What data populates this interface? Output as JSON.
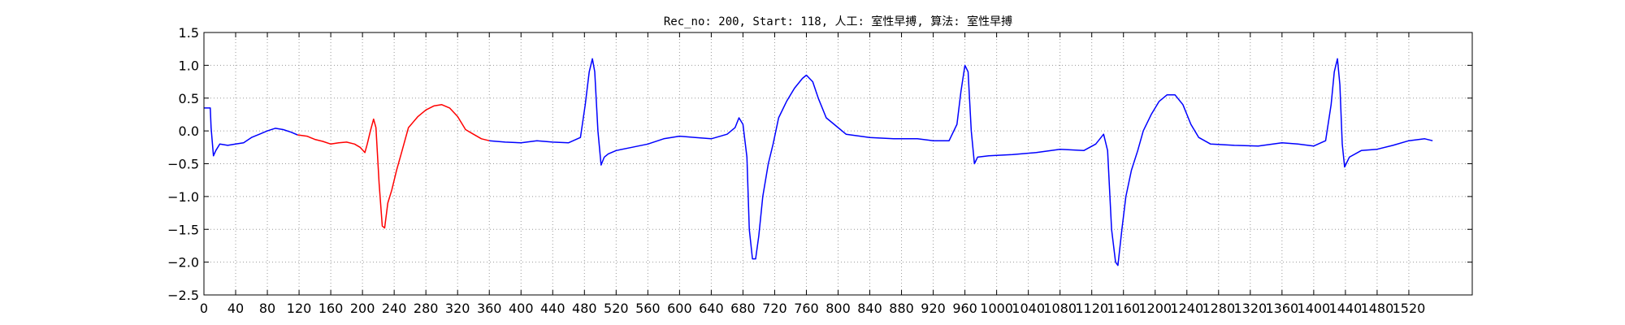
{
  "chart_data": {
    "type": "line",
    "title": "Rec_no: 200, Start: 118, 人工: 室性早搏, 算法: 室性早搏",
    "xlabel": "",
    "ylabel": "",
    "xlim": [
      0,
      1600
    ],
    "ylim": [
      -2.5,
      1.5
    ],
    "x_ticks": [
      0,
      40,
      80,
      120,
      160,
      200,
      240,
      280,
      320,
      360,
      400,
      440,
      480,
      520,
      560,
      600,
      640,
      680,
      720,
      760,
      800,
      840,
      880,
      920,
      960,
      1000,
      1040,
      1080,
      1120,
      1160,
      1200,
      1240,
      1280,
      1320,
      1360,
      1400,
      1440,
      1480,
      1520
    ],
    "y_ticks": [
      "1.5",
      "1.0",
      "0.5",
      "0.0",
      "−0.5",
      "−1.0",
      "−1.5",
      "−2.0",
      "−2.5"
    ],
    "y_tick_values": [
      1.5,
      1.0,
      0.5,
      0.0,
      -0.5,
      -1.0,
      -1.5,
      -2.0,
      -2.5
    ],
    "grid": true,
    "colors": {
      "signal": "#0000ff",
      "highlight": "#ff0000",
      "grid": "#999999"
    },
    "series": [
      {
        "color": "#0000ff",
        "points": [
          [
            0,
            0.35
          ],
          [
            8,
            0.35
          ],
          [
            9,
            0.05
          ],
          [
            12,
            -0.38
          ],
          [
            15,
            -0.3
          ],
          [
            20,
            -0.2
          ],
          [
            30,
            -0.22
          ],
          [
            40,
            -0.2
          ],
          [
            50,
            -0.18
          ],
          [
            60,
            -0.1
          ],
          [
            70,
            -0.05
          ],
          [
            80,
            0.0
          ],
          [
            90,
            0.04
          ],
          [
            100,
            0.02
          ],
          [
            110,
            -0.02
          ],
          [
            118,
            -0.06
          ]
        ]
      },
      {
        "color": "#ff0000",
        "points": [
          [
            118,
            -0.06
          ],
          [
            130,
            -0.08
          ],
          [
            140,
            -0.13
          ],
          [
            150,
            -0.16
          ],
          [
            160,
            -0.2
          ],
          [
            170,
            -0.18
          ],
          [
            180,
            -0.17
          ],
          [
            190,
            -0.2
          ],
          [
            197,
            -0.25
          ],
          [
            203,
            -0.33
          ],
          [
            206,
            -0.2
          ],
          [
            210,
            0.0
          ],
          [
            214,
            0.18
          ],
          [
            217,
            0.05
          ],
          [
            221,
            -0.8
          ],
          [
            225,
            -1.45
          ],
          [
            228,
            -1.48
          ],
          [
            232,
            -1.1
          ],
          [
            237,
            -0.9
          ],
          [
            243,
            -0.6
          ],
          [
            250,
            -0.3
          ],
          [
            258,
            0.05
          ],
          [
            270,
            0.22
          ],
          [
            280,
            0.32
          ],
          [
            290,
            0.38
          ],
          [
            300,
            0.4
          ],
          [
            310,
            0.35
          ],
          [
            320,
            0.22
          ],
          [
            330,
            0.02
          ],
          [
            340,
            -0.05
          ],
          [
            350,
            -0.12
          ],
          [
            360,
            -0.15
          ]
        ]
      },
      {
        "color": "#0000ff",
        "points": [
          [
            360,
            -0.15
          ],
          [
            380,
            -0.17
          ],
          [
            400,
            -0.18
          ],
          [
            420,
            -0.15
          ],
          [
            440,
            -0.17
          ],
          [
            460,
            -0.18
          ],
          [
            475,
            -0.1
          ],
          [
            481,
            0.4
          ],
          [
            486,
            0.9
          ],
          [
            490,
            1.1
          ],
          [
            493,
            0.9
          ],
          [
            497,
            0.0
          ],
          [
            501,
            -0.52
          ],
          [
            505,
            -0.4
          ],
          [
            510,
            -0.35
          ],
          [
            520,
            -0.3
          ],
          [
            540,
            -0.25
          ],
          [
            560,
            -0.2
          ],
          [
            580,
            -0.12
          ],
          [
            600,
            -0.08
          ],
          [
            620,
            -0.1
          ],
          [
            640,
            -0.12
          ],
          [
            660,
            -0.05
          ],
          [
            670,
            0.05
          ],
          [
            675,
            0.2
          ],
          [
            680,
            0.1
          ],
          [
            685,
            -0.4
          ],
          [
            688,
            -1.5
          ],
          [
            692,
            -1.95
          ],
          [
            696,
            -1.95
          ],
          [
            700,
            -1.6
          ],
          [
            705,
            -1.0
          ],
          [
            712,
            -0.5
          ],
          [
            718,
            -0.2
          ],
          [
            725,
            0.2
          ],
          [
            735,
            0.45
          ],
          [
            745,
            0.65
          ],
          [
            755,
            0.8
          ],
          [
            760,
            0.85
          ],
          [
            768,
            0.75
          ],
          [
            775,
            0.5
          ],
          [
            785,
            0.2
          ],
          [
            795,
            0.1
          ],
          [
            810,
            -0.05
          ],
          [
            840,
            -0.1
          ],
          [
            870,
            -0.12
          ],
          [
            900,
            -0.12
          ],
          [
            920,
            -0.15
          ],
          [
            940,
            -0.15
          ],
          [
            950,
            0.1
          ],
          [
            955,
            0.6
          ],
          [
            960,
            1.0
          ],
          [
            964,
            0.9
          ],
          [
            968,
            0.0
          ],
          [
            972,
            -0.5
          ],
          [
            976,
            -0.4
          ],
          [
            990,
            -0.38
          ],
          [
            1020,
            -0.36
          ],
          [
            1050,
            -0.33
          ],
          [
            1080,
            -0.28
          ],
          [
            1110,
            -0.3
          ],
          [
            1125,
            -0.2
          ],
          [
            1135,
            -0.05
          ],
          [
            1140,
            -0.3
          ],
          [
            1145,
            -1.5
          ],
          [
            1150,
            -2.0
          ],
          [
            1153,
            -2.05
          ],
          [
            1158,
            -1.5
          ],
          [
            1163,
            -1.0
          ],
          [
            1170,
            -0.6
          ],
          [
            1178,
            -0.3
          ],
          [
            1185,
            0.0
          ],
          [
            1195,
            0.25
          ],
          [
            1205,
            0.45
          ],
          [
            1215,
            0.55
          ],
          [
            1225,
            0.55
          ],
          [
            1235,
            0.4
          ],
          [
            1245,
            0.1
          ],
          [
            1255,
            -0.1
          ],
          [
            1270,
            -0.2
          ],
          [
            1300,
            -0.22
          ],
          [
            1330,
            -0.23
          ],
          [
            1360,
            -0.18
          ],
          [
            1380,
            -0.2
          ],
          [
            1400,
            -0.23
          ],
          [
            1415,
            -0.15
          ],
          [
            1422,
            0.4
          ],
          [
            1426,
            0.9
          ],
          [
            1430,
            1.1
          ],
          [
            1433,
            0.7
          ],
          [
            1436,
            -0.2
          ],
          [
            1439,
            -0.55
          ],
          [
            1445,
            -0.4
          ],
          [
            1460,
            -0.3
          ],
          [
            1480,
            -0.28
          ],
          [
            1500,
            -0.22
          ],
          [
            1520,
            -0.15
          ],
          [
            1540,
            -0.12
          ],
          [
            1550,
            -0.15
          ]
        ]
      }
    ]
  }
}
